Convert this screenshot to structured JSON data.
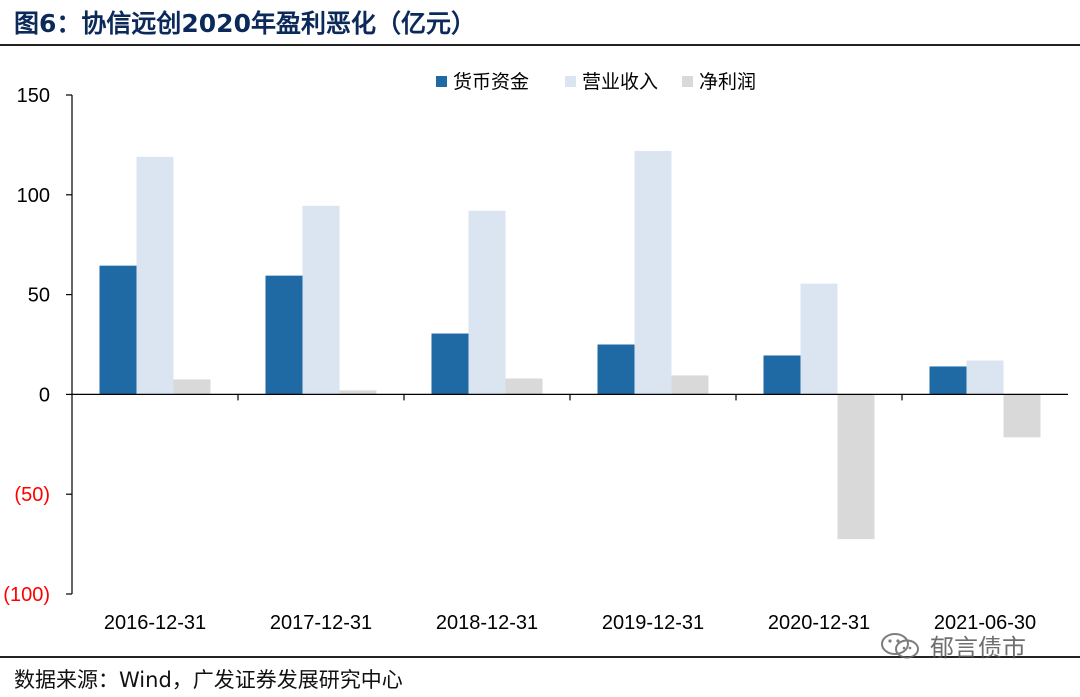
{
  "title": "图6：协信远创2020年盈利恶化（亿元）",
  "source": "数据来源：Wind，广发证券发展研究中心",
  "watermark": "郁言债市",
  "chart_data": {
    "type": "bar",
    "categories": [
      "2016-12-31",
      "2017-12-31",
      "2018-12-31",
      "2019-12-31",
      "2020-12-31",
      "2021-06-30"
    ],
    "series": [
      {
        "name": "货币资金",
        "color": "#1f6aa5",
        "values": [
          64.5,
          59.5,
          30.5,
          25,
          19.5,
          14
        ]
      },
      {
        "name": "营业收入",
        "color": "#dbe5f1",
        "values": [
          119,
          94.5,
          92,
          122,
          55.5,
          17
        ]
      },
      {
        "name": "净利润",
        "color": "#d9d9d9",
        "values": [
          7.5,
          2,
          8,
          9.5,
          -72.5,
          -21.5
        ]
      }
    ],
    "ylim": [
      -100,
      150
    ],
    "yticks": [
      150,
      100,
      50,
      0,
      -50,
      -100
    ],
    "ytick_labels": [
      "150",
      "100",
      "50",
      "0",
      "(50)",
      "(100)"
    ],
    "negative_label_color": "#ff0000",
    "legend_position": "top-center"
  }
}
